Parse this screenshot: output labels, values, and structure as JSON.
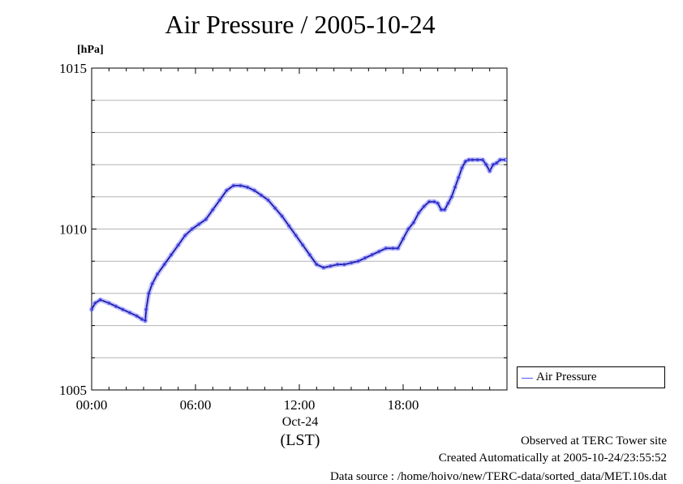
{
  "chart_data": {
    "type": "line",
    "title": "Air Pressure / 2005-10-24",
    "unit": "[hPa]",
    "ylim": [
      1005,
      1015
    ],
    "y_ticks": [
      "1005",
      "1010",
      "1015"
    ],
    "x_range_hours": [
      0,
      24
    ],
    "x_ticks": [
      "00:00",
      "06:00",
      "12:00",
      "18:00"
    ],
    "date_label": "Oct-24",
    "tz_label": "(LST)",
    "grid": true,
    "legend_position": "bottom-right",
    "series": [
      {
        "name": "Air Pressure",
        "color": "#5555ff",
        "x": [
          0,
          0.2,
          0.5,
          1.0,
          1.4,
          1.8,
          2.2,
          2.6,
          2.9,
          3.1,
          3.15,
          3.3,
          3.5,
          3.8,
          4.2,
          4.6,
          5.0,
          5.4,
          5.8,
          6.2,
          6.6,
          7.0,
          7.4,
          7.8,
          8.2,
          8.6,
          9.0,
          9.4,
          9.8,
          10.2,
          10.6,
          11.0,
          11.4,
          11.8,
          12.2,
          12.6,
          13.0,
          13.4,
          13.8,
          14.2,
          14.6,
          15.0,
          15.4,
          15.8,
          16.2,
          16.6,
          17.0,
          17.4,
          17.7,
          18.0,
          18.3,
          18.6,
          18.9,
          19.2,
          19.5,
          19.8,
          20.0,
          20.2,
          20.4,
          20.6,
          20.8,
          21.0,
          21.2,
          21.4,
          21.6,
          21.8,
          22.0,
          22.3,
          22.6,
          22.8,
          23.0,
          23.2,
          23.4,
          23.6,
          23.9
        ],
        "y": [
          1007.5,
          1007.7,
          1007.8,
          1007.7,
          1007.6,
          1007.5,
          1007.4,
          1007.3,
          1007.2,
          1007.15,
          1007.5,
          1008.0,
          1008.3,
          1008.6,
          1008.9,
          1009.2,
          1009.5,
          1009.8,
          1010.0,
          1010.15,
          1010.3,
          1010.6,
          1010.9,
          1011.2,
          1011.35,
          1011.35,
          1011.3,
          1011.2,
          1011.05,
          1010.9,
          1010.65,
          1010.4,
          1010.1,
          1009.8,
          1009.5,
          1009.2,
          1008.9,
          1008.8,
          1008.85,
          1008.9,
          1008.9,
          1008.95,
          1009.0,
          1009.1,
          1009.2,
          1009.3,
          1009.4,
          1009.4,
          1009.4,
          1009.7,
          1010.0,
          1010.2,
          1010.5,
          1010.7,
          1010.85,
          1010.85,
          1010.8,
          1010.6,
          1010.6,
          1010.8,
          1011.0,
          1011.3,
          1011.6,
          1011.9,
          1012.1,
          1012.15,
          1012.15,
          1012.15,
          1012.15,
          1012.0,
          1011.8,
          1012.0,
          1012.05,
          1012.15,
          1012.15
        ]
      }
    ]
  },
  "notes": {
    "observed": "Observed at TERC Tower site",
    "created": "Created Automatically at 2005-10-24/23:55:52",
    "source": "Data source : /home/hoivo/new/TERC-data/sorted_data/MET.10s.dat"
  }
}
